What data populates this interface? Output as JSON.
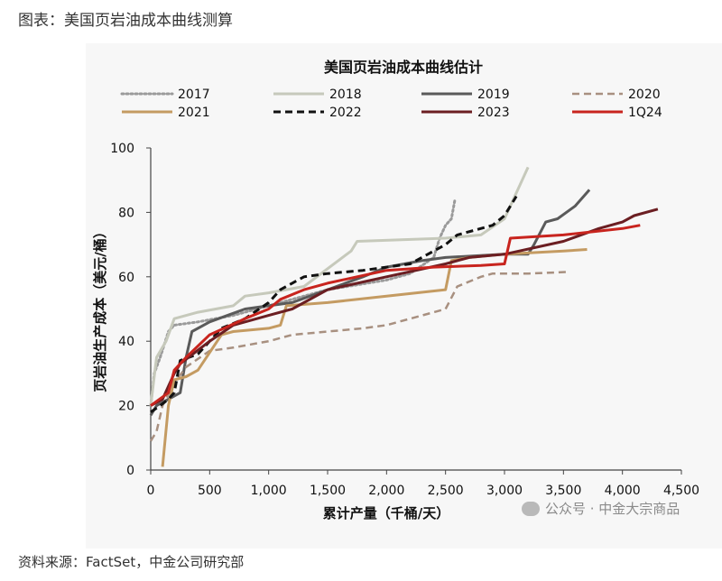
{
  "page": {
    "caption": "图表：美国页岩油成本曲线测算",
    "source": "资料来源：FactSet，中金公司研究部",
    "watermark": "公众号 · 中金大宗商品"
  },
  "colors": {
    "bg_band": "#f7f7f7",
    "axis": "#444444"
  },
  "chart_data": {
    "type": "line",
    "title": "美国页岩油成本曲线估计",
    "xlabel": "累计产量（千桶/天）",
    "ylabel": "页岩油生产成本（美元/桶）",
    "xlim": [
      0,
      4500
    ],
    "ylim": [
      0,
      100
    ],
    "xticks": [
      0,
      500,
      1000,
      1500,
      2000,
      2500,
      3000,
      3500,
      4000,
      4500
    ],
    "xtick_labels": [
      "0",
      "500",
      "1,000",
      "1,500",
      "2,000",
      "2,500",
      "3,000",
      "3,500",
      "4,000",
      "4,500"
    ],
    "yticks": [
      0,
      20,
      40,
      60,
      80,
      100
    ],
    "ytick_labels": [
      "0",
      "20",
      "40",
      "60",
      "80",
      "100"
    ],
    "grid": false,
    "legend_position": "top",
    "series": [
      {
        "name": "2017",
        "color": "#9a9a9a",
        "dash": "dotted",
        "width": 3,
        "points": [
          [
            0,
            20
          ],
          [
            30,
            30
          ],
          [
            80,
            35
          ],
          [
            150,
            43
          ],
          [
            200,
            45
          ],
          [
            400,
            46
          ],
          [
            700,
            48
          ],
          [
            1000,
            51
          ],
          [
            1500,
            56
          ],
          [
            2000,
            59
          ],
          [
            2200,
            61
          ],
          [
            2400,
            66
          ],
          [
            2450,
            72
          ],
          [
            2500,
            76
          ],
          [
            2550,
            78
          ],
          [
            2580,
            84
          ]
        ]
      },
      {
        "name": "2018",
        "color": "#c6c9bb",
        "dash": "solid",
        "width": 3,
        "points": [
          [
            0,
            20
          ],
          [
            50,
            35
          ],
          [
            130,
            40
          ],
          [
            200,
            47
          ],
          [
            400,
            49
          ],
          [
            700,
            51
          ],
          [
            800,
            54
          ],
          [
            1000,
            55
          ],
          [
            1300,
            57
          ],
          [
            1700,
            68
          ],
          [
            1750,
            71
          ],
          [
            2500,
            72
          ],
          [
            2800,
            73
          ],
          [
            3000,
            78
          ],
          [
            3200,
            94
          ]
        ]
      },
      {
        "name": "2019",
        "color": "#5a5a5a",
        "dash": "solid",
        "width": 3,
        "points": [
          [
            0,
            17
          ],
          [
            50,
            20
          ],
          [
            150,
            22
          ],
          [
            250,
            24
          ],
          [
            300,
            35
          ],
          [
            350,
            43
          ],
          [
            500,
            46
          ],
          [
            800,
            50
          ],
          [
            1000,
            51
          ],
          [
            1200,
            52
          ],
          [
            1500,
            56
          ],
          [
            1800,
            60
          ],
          [
            2000,
            63
          ],
          [
            2300,
            65
          ],
          [
            2500,
            66
          ],
          [
            3000,
            67
          ],
          [
            3200,
            67
          ],
          [
            3250,
            70
          ],
          [
            3350,
            77
          ],
          [
            3450,
            78
          ],
          [
            3600,
            82
          ],
          [
            3720,
            87
          ]
        ]
      },
      {
        "name": "2020",
        "color": "#a89080",
        "dash": "dashed",
        "width": 2.5,
        "points": [
          [
            0,
            9
          ],
          [
            50,
            12
          ],
          [
            100,
            20
          ],
          [
            200,
            27
          ],
          [
            300,
            32
          ],
          [
            500,
            37
          ],
          [
            700,
            38
          ],
          [
            1000,
            40
          ],
          [
            1200,
            42
          ],
          [
            1500,
            43
          ],
          [
            1800,
            44
          ],
          [
            2000,
            45
          ],
          [
            2500,
            50
          ],
          [
            2600,
            57
          ],
          [
            2800,
            60
          ],
          [
            2900,
            61
          ],
          [
            3200,
            61
          ],
          [
            3550,
            61.5
          ]
        ]
      },
      {
        "name": "2021",
        "color": "#c49b62",
        "dash": "solid",
        "width": 3,
        "points": [
          [
            100,
            1
          ],
          [
            150,
            20
          ],
          [
            200,
            28
          ],
          [
            300,
            29
          ],
          [
            400,
            31
          ],
          [
            600,
            42
          ],
          [
            700,
            43
          ],
          [
            1000,
            44
          ],
          [
            1100,
            45
          ],
          [
            1150,
            51
          ],
          [
            1500,
            52
          ],
          [
            2000,
            54
          ],
          [
            2500,
            56
          ],
          [
            2550,
            65
          ],
          [
            2700,
            66
          ],
          [
            3000,
            67
          ],
          [
            3500,
            68
          ],
          [
            3700,
            68.5
          ]
        ]
      },
      {
        "name": "2022",
        "color": "#111111",
        "dash": "dashed",
        "width": 3,
        "points": [
          [
            0,
            18
          ],
          [
            80,
            20
          ],
          [
            150,
            22
          ],
          [
            200,
            24
          ],
          [
            250,
            34
          ],
          [
            400,
            36
          ],
          [
            600,
            44
          ],
          [
            800,
            47
          ],
          [
            1000,
            52
          ],
          [
            1100,
            56
          ],
          [
            1200,
            58
          ],
          [
            1300,
            60
          ],
          [
            1500,
            61
          ],
          [
            1800,
            62
          ],
          [
            2000,
            63
          ],
          [
            2200,
            64
          ],
          [
            2500,
            70
          ],
          [
            2600,
            73
          ],
          [
            2900,
            76
          ],
          [
            3000,
            79
          ],
          [
            3100,
            85
          ]
        ]
      },
      {
        "name": "2023",
        "color": "#6b1e22",
        "dash": "solid",
        "width": 3,
        "points": [
          [
            0,
            20
          ],
          [
            100,
            22
          ],
          [
            200,
            30
          ],
          [
            250,
            33
          ],
          [
            500,
            40
          ],
          [
            700,
            45
          ],
          [
            1000,
            48
          ],
          [
            1200,
            50
          ],
          [
            1500,
            56
          ],
          [
            2000,
            60
          ],
          [
            2500,
            64
          ],
          [
            2700,
            66
          ],
          [
            3000,
            67
          ],
          [
            3500,
            71
          ],
          [
            3800,
            75
          ],
          [
            4000,
            77
          ],
          [
            4100,
            79
          ],
          [
            4300,
            81
          ]
        ]
      },
      {
        "name": "1Q24",
        "color": "#c8241e",
        "dash": "solid",
        "width": 3,
        "points": [
          [
            0,
            20
          ],
          [
            150,
            24
          ],
          [
            200,
            31
          ],
          [
            300,
            35
          ],
          [
            500,
            42
          ],
          [
            800,
            47
          ],
          [
            1000,
            50
          ],
          [
            1100,
            53
          ],
          [
            1300,
            56
          ],
          [
            1500,
            58
          ],
          [
            2000,
            62
          ],
          [
            2400,
            63
          ],
          [
            2800,
            63.5
          ],
          [
            3000,
            64
          ],
          [
            3050,
            72
          ],
          [
            3500,
            73
          ],
          [
            4000,
            75
          ],
          [
            4150,
            76
          ]
        ]
      }
    ]
  }
}
